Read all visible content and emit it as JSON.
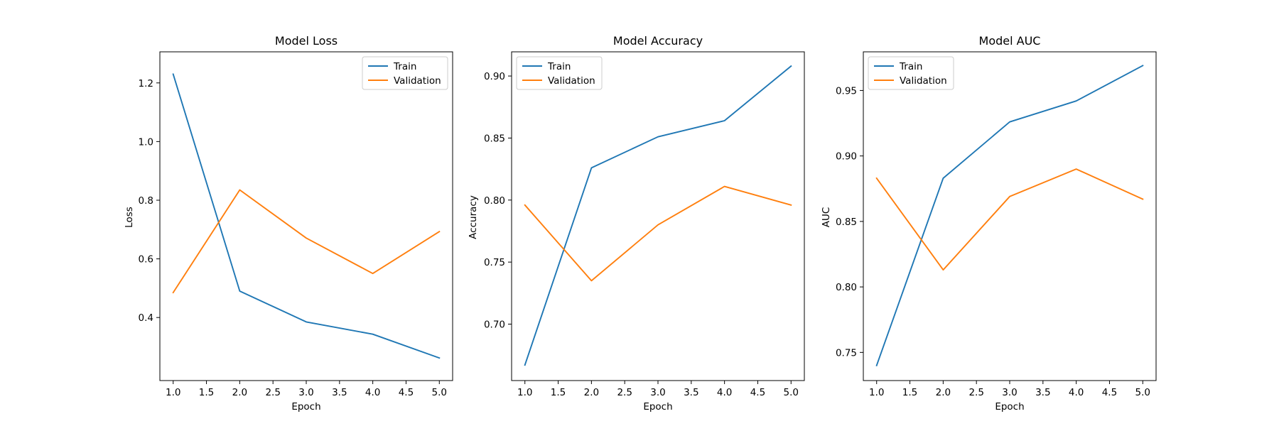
{
  "colors": {
    "train": "#1f77b4",
    "validation": "#ff7f0e",
    "axes": "#000000",
    "background": "#ffffff"
  },
  "chart_data": [
    {
      "type": "line",
      "title": "Model Loss",
      "xlabel": "Epoch",
      "ylabel": "Loss",
      "xlim": [
        0.8,
        5.2
      ],
      "ylim": [
        0.185,
        1.306
      ],
      "xticks": [
        1.0,
        1.5,
        2.0,
        2.5,
        3.0,
        3.5,
        4.0,
        4.5,
        5.0
      ],
      "xtick_labels": [
        "1.0",
        "1.5",
        "2.0",
        "2.5",
        "3.0",
        "3.5",
        "4.0",
        "4.5",
        "5.0"
      ],
      "yticks": [
        0.4,
        0.6,
        0.8,
        1.0,
        1.2
      ],
      "ytick_labels": [
        "0.4",
        "0.6",
        "0.8",
        "1.0",
        "1.2"
      ],
      "legend": "top-right",
      "grid": false,
      "x": [
        1,
        2,
        3,
        4,
        5
      ],
      "series": [
        {
          "name": "Train",
          "values": [
            1.23,
            0.49,
            0.385,
            0.343,
            0.262
          ]
        },
        {
          "name": "Validation",
          "values": [
            0.485,
            0.835,
            0.671,
            0.55,
            0.693
          ]
        }
      ]
    },
    {
      "type": "line",
      "title": "Model Accuracy",
      "xlabel": "Epoch",
      "ylabel": "Accuracy",
      "xlim": [
        0.8,
        5.2
      ],
      "ylim": [
        0.6545,
        0.9195
      ],
      "xticks": [
        1.0,
        1.5,
        2.0,
        2.5,
        3.0,
        3.5,
        4.0,
        4.5,
        5.0
      ],
      "xtick_labels": [
        "1.0",
        "1.5",
        "2.0",
        "2.5",
        "3.0",
        "3.5",
        "4.0",
        "4.5",
        "5.0"
      ],
      "yticks": [
        0.7,
        0.75,
        0.8,
        0.85,
        0.9
      ],
      "ytick_labels": [
        "0.70",
        "0.75",
        "0.80",
        "0.85",
        "0.90"
      ],
      "legend": "top-left",
      "grid": false,
      "x": [
        1,
        2,
        3,
        4,
        5
      ],
      "series": [
        {
          "name": "Train",
          "values": [
            0.667,
            0.826,
            0.851,
            0.864,
            0.908
          ]
        },
        {
          "name": "Validation",
          "values": [
            0.796,
            0.735,
            0.78,
            0.811,
            0.796
          ]
        }
      ]
    },
    {
      "type": "line",
      "title": "Model AUC",
      "xlabel": "Epoch",
      "ylabel": "AUC",
      "xlim": [
        0.8,
        5.2
      ],
      "ylim": [
        0.7285,
        0.9795
      ],
      "xticks": [
        1.0,
        1.5,
        2.0,
        2.5,
        3.0,
        3.5,
        4.0,
        4.5,
        5.0
      ],
      "xtick_labels": [
        "1.0",
        "1.5",
        "2.0",
        "2.5",
        "3.0",
        "3.5",
        "4.0",
        "4.5",
        "5.0"
      ],
      "yticks": [
        0.75,
        0.8,
        0.85,
        0.9,
        0.95
      ],
      "ytick_labels": [
        "0.75",
        "0.80",
        "0.85",
        "0.90",
        "0.95"
      ],
      "legend": "top-left",
      "grid": false,
      "x": [
        1,
        2,
        3,
        4,
        5
      ],
      "series": [
        {
          "name": "Train",
          "values": [
            0.74,
            0.883,
            0.926,
            0.942,
            0.969
          ]
        },
        {
          "name": "Validation",
          "values": [
            0.883,
            0.813,
            0.869,
            0.89,
            0.867
          ]
        }
      ]
    }
  ]
}
